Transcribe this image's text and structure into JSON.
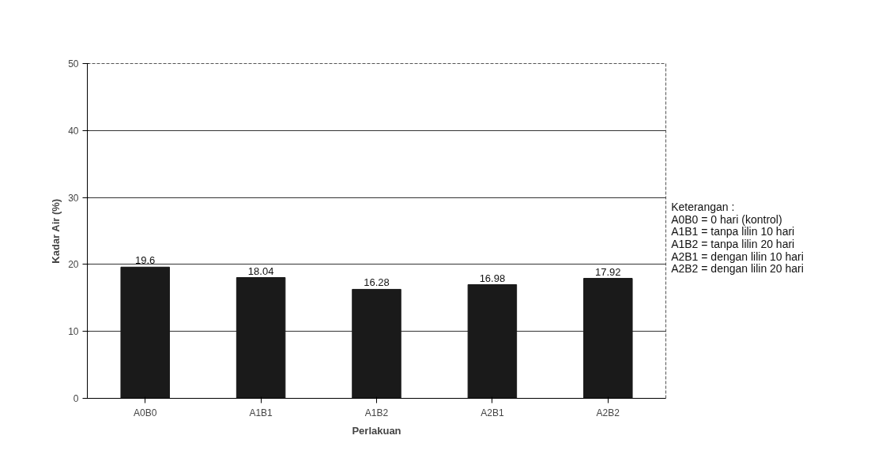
{
  "chart_data": {
    "type": "bar",
    "categories": [
      "A0B0",
      "A1B1",
      "A1B2",
      "A2B1",
      "A2B2"
    ],
    "values": [
      19.6,
      18.04,
      16.28,
      16.98,
      17.92
    ],
    "color": "#1a1a1a",
    "xlabel": "Perlakuan",
    "ylabel": "Kadar Air (%)",
    "ylim": [
      0,
      50
    ],
    "yticks": [
      0,
      10,
      20,
      30,
      40,
      50
    ],
    "grid": "y",
    "data_labels": true,
    "annotations": [
      "Keterangan :",
      "A0B0 = 0 hari (kontrol)",
      "A1B1 = tanpa lilin 10 hari",
      "A1B2 = tanpa lilin 20 hari",
      "A2B1 = dengan lilin 10 hari",
      "A2B2 = dengan lilin 20 hari"
    ]
  }
}
